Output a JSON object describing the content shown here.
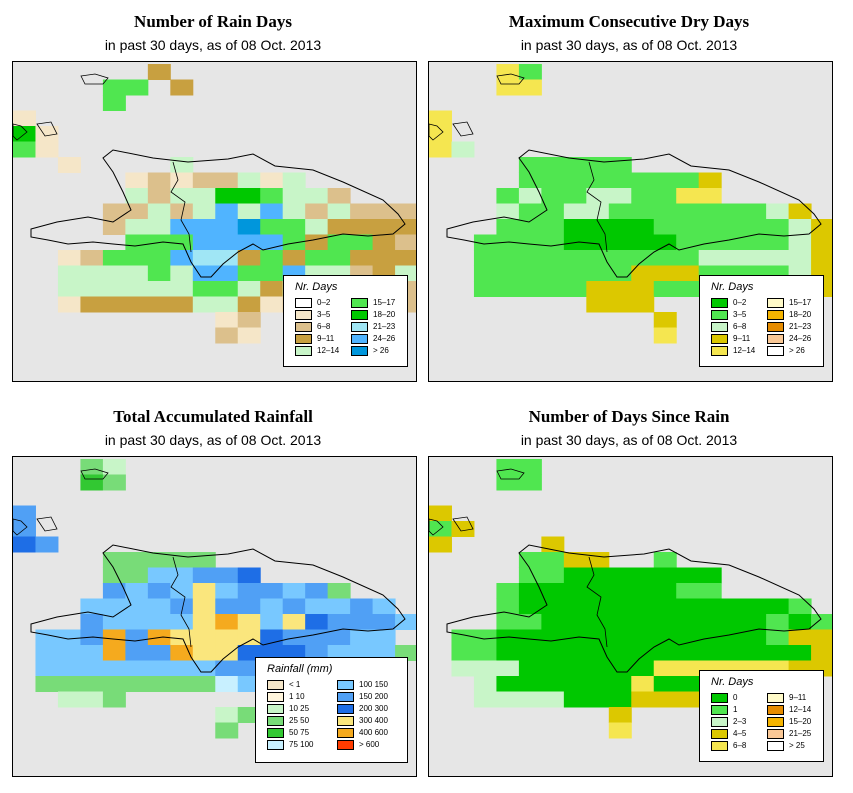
{
  "colors": {
    "background": "#e6e6e6",
    "frame": "#000000",
    "coast": "#000000"
  },
  "chart_data": [
    {
      "type": "heatmap",
      "id": "rain_days",
      "title": "Number of Rain Days",
      "subtitle": "in past 30 days, as of  08 Oct. 2013",
      "legend_title": "Nr. Days",
      "legend_placement": "bottom-right",
      "legend_labels": [
        "0–2",
        "3–5",
        "6–8",
        "9–11",
        "12–14",
        "15–17",
        "18–20",
        "21–23",
        "24–26",
        "> 26"
      ],
      "legend_colors": [
        "#ffffff",
        "#f5e6c8",
        "#dcc08c",
        "#c8a040",
        "#c8f5c8",
        "#50e650",
        "#00c800",
        "#a0e6f5",
        "#50b4ff",
        "#0096dc"
      ],
      "classes": [
        "TTTT TTTT T",
        "TTTT TTTT TTTTTTT",
        "TTTTTT T TTTTT",
        "TTTT CCC TTTTTTT",
        "TTTT CCCC TT",
        "TTTTT CCC",
        "TTTT CTTTTT",
        "TTTT CC TTT",
        "TTTT C"
      ]
    },
    {
      "type": "heatmap",
      "id": "max_dry",
      "title": "Maximum Consecutive Dry Days",
      "subtitle": "in past 30 days, as of  08 Oct. 2013",
      "legend_title": "Nr. Days",
      "legend_placement": "bottom-right",
      "legend_labels": [
        "0–2",
        "3–5",
        "6–8",
        "9–11",
        "12–14",
        "15–17",
        "18–20",
        "21–23",
        "24–26",
        "> 26"
      ],
      "legend_colors": [
        "#00c800",
        "#50e650",
        "#c8f5c8",
        "#dcc800",
        "#f5e650",
        "#fffac8",
        "#f5b400",
        "#e68c00",
        "#fac896",
        "#ffffff"
      ],
      "classes": []
    },
    {
      "type": "heatmap",
      "id": "rainfall",
      "title": "Total Accumulated Rainfall",
      "subtitle": "in past 30 days, as of  08 Oct. 2013",
      "legend_title": "Rainfall (mm)",
      "legend_placement": "bottom-right",
      "legend_labels": [
        "< 1",
        "1    10",
        "10    25",
        "25    50",
        "50    75",
        "75  100",
        "100  150",
        "150  200",
        "200  300",
        "300  400",
        "400  600",
        "> 600"
      ],
      "legend_colors": [
        "#f5e6c8",
        "#fff5dc",
        "#c8f5c8",
        "#78dc78",
        "#32c832",
        "#c8f0ff",
        "#78c8ff",
        "#50a0f5",
        "#1e6ee6",
        "#fae67d",
        "#f5aa1e",
        "#ff3c00"
      ],
      "classes": []
    },
    {
      "type": "heatmap",
      "id": "since_rain",
      "title": "Number of Days Since Rain",
      "subtitle": "in past 30 days, as of  08 Oct. 2013",
      "legend_title": "Nr. Days",
      "legend_placement": "bottom-right",
      "legend_labels": [
        "0",
        "1",
        "2–3",
        "4–5",
        "6–8",
        "9–11",
        "12–14",
        "15–20",
        "21–25",
        "> 25"
      ],
      "legend_colors": [
        "#00c800",
        "#50e650",
        "#c8f5c8",
        "#dcc800",
        "#f5e650",
        "#fffac8",
        "#e68c00",
        "#f5b400",
        "#fac896",
        "#ffffff"
      ],
      "classes": []
    }
  ]
}
